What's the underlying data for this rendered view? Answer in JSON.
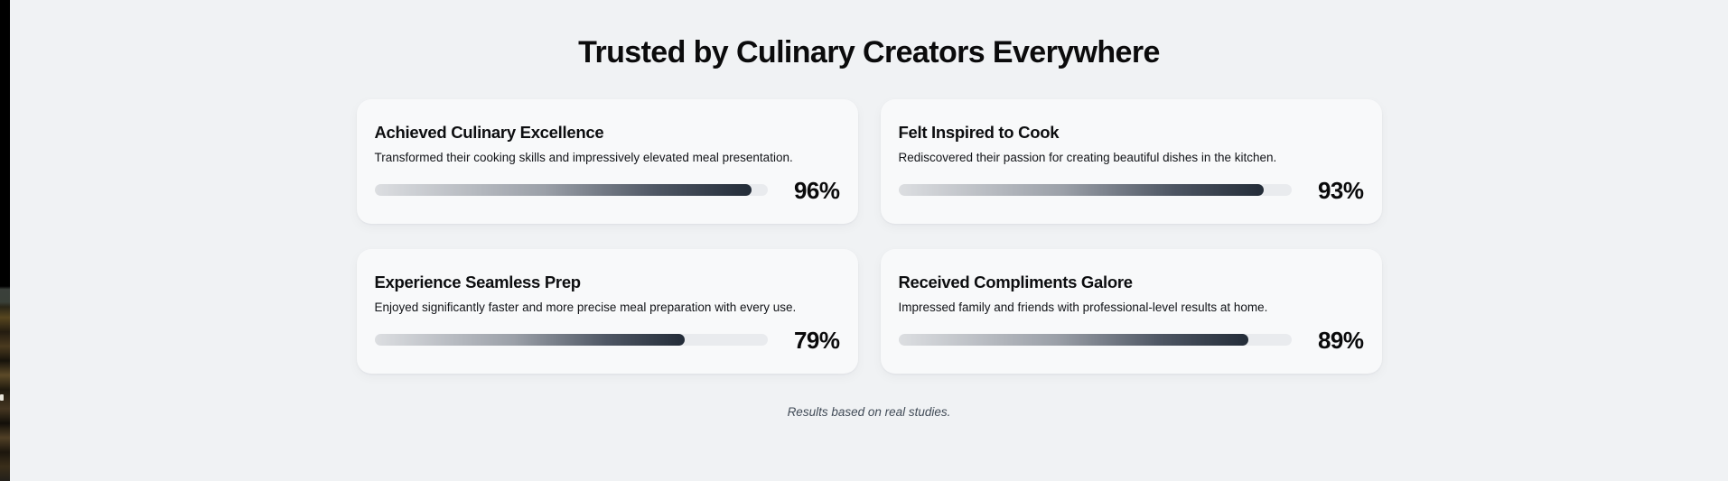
{
  "page": {
    "title": "Trusted by Culinary Creators Everywhere",
    "footnote": "Results based on real studies.",
    "colors": {
      "page_bg": "#f0f2f4",
      "card_bg": "#f8f9fa",
      "track": "#e9ebee",
      "fill_gradient_start": "#dcdee1",
      "fill_gradient_end": "#232c38",
      "heading_text": "#0b0b0c",
      "footnote_text": "#414b57"
    }
  },
  "cards": [
    {
      "title": "Achieved Culinary Excellence",
      "description": "Transformed their cooking skills and impressively elevated meal presentation.",
      "value": 96,
      "percent_label": "96%"
    },
    {
      "title": "Felt Inspired to Cook",
      "description": "Rediscovered their passion for creating beautiful dishes in the kitchen.",
      "value": 93,
      "percent_label": "93%"
    },
    {
      "title": "Experience Seamless Prep",
      "description": "Enjoyed significantly faster and more precise meal preparation with every use.",
      "value": 79,
      "percent_label": "79%"
    },
    {
      "title": "Received Compliments Galore",
      "description": "Impressed family and friends with professional-level results at home.",
      "value": 89,
      "percent_label": "89%"
    }
  ]
}
